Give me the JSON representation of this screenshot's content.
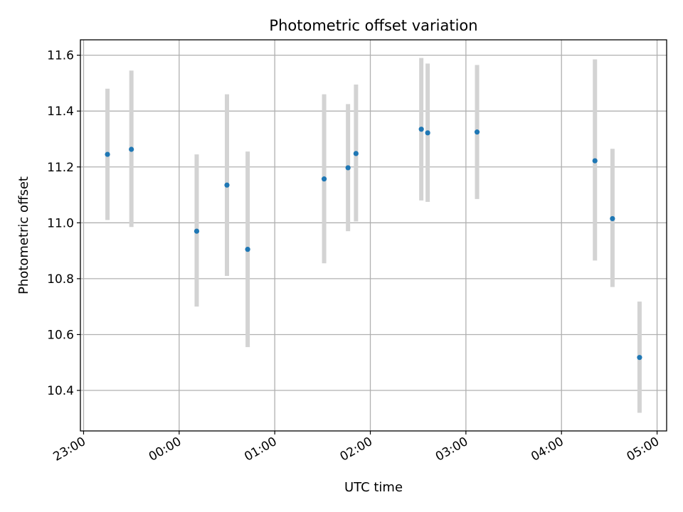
{
  "chart_data": {
    "type": "scatter",
    "title": "Photometric offset variation",
    "xlabel": "UTC time",
    "ylabel": "Photometric offset",
    "xlim": [
      "22:58",
      "05:06"
    ],
    "ylim": [
      10.255,
      11.655
    ],
    "xticks": [
      "23:00",
      "00:00",
      "01:00",
      "02:00",
      "03:00",
      "04:00",
      "05:00"
    ],
    "yticks": [
      "10.4",
      "10.6",
      "10.8",
      "11.0",
      "11.2",
      "11.4",
      "11.6"
    ],
    "grid": true,
    "colors": {
      "point": "#1f77b4",
      "errorbar": "#d3d3d3",
      "grid": "#b0b0b0"
    },
    "points": [
      {
        "x": "23:15",
        "y": 11.245,
        "ymin": 11.01,
        "ymax": 11.48
      },
      {
        "x": "23:30",
        "y": 11.263,
        "ymin": 10.985,
        "ymax": 11.545
      },
      {
        "x": "00:11",
        "y": 10.97,
        "ymin": 10.7,
        "ymax": 11.245
      },
      {
        "x": "00:30",
        "y": 11.135,
        "ymin": 10.81,
        "ymax": 11.46
      },
      {
        "x": "00:43",
        "y": 10.905,
        "ymin": 10.555,
        "ymax": 11.255
      },
      {
        "x": "01:31",
        "y": 11.157,
        "ymin": 10.855,
        "ymax": 11.46
      },
      {
        "x": "01:46",
        "y": 11.197,
        "ymin": 10.97,
        "ymax": 11.425
      },
      {
        "x": "01:51",
        "y": 11.248,
        "ymin": 11.005,
        "ymax": 11.495
      },
      {
        "x": "02:32",
        "y": 11.335,
        "ymin": 11.08,
        "ymax": 11.59
      },
      {
        "x": "02:36",
        "y": 11.322,
        "ymin": 11.075,
        "ymax": 11.57
      },
      {
        "x": "03:07",
        "y": 11.325,
        "ymin": 11.085,
        "ymax": 11.565
      },
      {
        "x": "04:21",
        "y": 11.222,
        "ymin": 10.865,
        "ymax": 11.585
      },
      {
        "x": "04:32",
        "y": 11.015,
        "ymin": 10.77,
        "ymax": 11.265
      },
      {
        "x": "04:49",
        "y": 10.518,
        "ymin": 10.32,
        "ymax": 10.718
      }
    ]
  }
}
